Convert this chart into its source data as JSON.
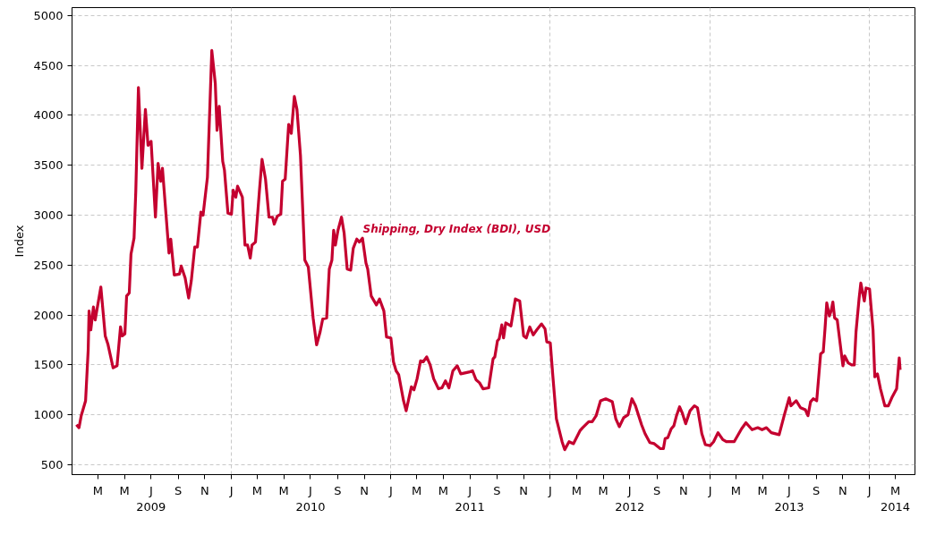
{
  "chart_data": {
    "type": "line",
    "ylabel": "Index",
    "xlim": [
      "2009-01-01",
      "2014-04-15"
    ],
    "ylim": [
      400,
      5080
    ],
    "yticks": [
      500,
      1000,
      1500,
      2000,
      2500,
      3000,
      3500,
      4000,
      4500,
      5000
    ],
    "xticks": [
      {
        "value": "2009-03-01",
        "label": "M"
      },
      {
        "value": "2009-05-01",
        "label": "M"
      },
      {
        "value": "2009-07-01",
        "label": "J\n2009"
      },
      {
        "value": "2009-09-01",
        "label": "S"
      },
      {
        "value": "2009-11-01",
        "label": "N"
      },
      {
        "value": "2010-01-01",
        "label": "J"
      },
      {
        "value": "2010-03-01",
        "label": "M"
      },
      {
        "value": "2010-05-01",
        "label": "M"
      },
      {
        "value": "2010-07-01",
        "label": "J\n2010"
      },
      {
        "value": "2010-09-01",
        "label": "S"
      },
      {
        "value": "2010-11-01",
        "label": "N"
      },
      {
        "value": "2011-01-01",
        "label": "J"
      },
      {
        "value": "2011-03-01",
        "label": "M"
      },
      {
        "value": "2011-05-01",
        "label": "M"
      },
      {
        "value": "2011-07-01",
        "label": "J\n2011"
      },
      {
        "value": "2011-09-01",
        "label": "S"
      },
      {
        "value": "2011-11-01",
        "label": "N"
      },
      {
        "value": "2012-01-01",
        "label": "J"
      },
      {
        "value": "2012-03-01",
        "label": "M"
      },
      {
        "value": "2012-05-01",
        "label": "M"
      },
      {
        "value": "2012-07-01",
        "label": "J\n2012"
      },
      {
        "value": "2012-09-01",
        "label": "S"
      },
      {
        "value": "2012-11-01",
        "label": "N"
      },
      {
        "value": "2013-01-01",
        "label": "J"
      },
      {
        "value": "2013-03-01",
        "label": "M"
      },
      {
        "value": "2013-05-01",
        "label": "M"
      },
      {
        "value": "2013-07-01",
        "label": "J\n2013"
      },
      {
        "value": "2013-09-01",
        "label": "S"
      },
      {
        "value": "2013-11-01",
        "label": "N"
      },
      {
        "value": "2014-01-01",
        "label": "J"
      },
      {
        "value": "2014-03-01",
        "label": "M\n2014"
      }
    ],
    "grid": true,
    "line_style": "solid",
    "marker": "none",
    "series": [
      {
        "name": "Shipping, Dry Index (BDI), USD",
        "color": "#c4002f",
        "x": [
          "2009-01-11",
          "2009-01-17",
          "2009-01-22",
          "2009-02-01",
          "2009-02-07",
          "2009-02-09",
          "2009-02-13",
          "2009-02-19",
          "2009-02-23",
          "2009-03-08",
          "2009-03-18",
          "2009-03-24",
          "2009-04-05",
          "2009-04-14",
          "2009-04-22",
          "2009-04-26",
          "2009-05-02",
          "2009-05-06",
          "2009-05-12",
          "2009-05-16",
          "2009-05-23",
          "2009-05-27",
          "2009-06-02",
          "2009-06-10",
          "2009-06-18",
          "2009-06-24",
          "2009-07-01",
          "2009-07-11",
          "2009-07-17",
          "2009-07-23",
          "2009-07-27",
          "2009-08-11",
          "2009-08-15",
          "2009-08-23",
          "2009-09-04",
          "2009-09-08",
          "2009-09-17",
          "2009-09-25",
          "2009-10-01",
          "2009-10-09",
          "2009-10-15",
          "2009-10-23",
          "2009-10-28",
          "2009-11-07",
          "2009-11-17",
          "2009-11-25",
          "2009-11-29",
          "2009-12-04",
          "2009-12-12",
          "2009-12-16",
          "2009-12-24",
          "2010-01-01",
          "2010-01-05",
          "2010-01-11",
          "2010-01-15",
          "2010-01-26",
          "2010-02-01",
          "2010-02-07",
          "2010-02-13",
          "2010-02-17",
          "2010-02-25",
          "2010-03-06",
          "2010-03-12",
          "2010-03-20",
          "2010-03-28",
          "2010-04-05",
          "2010-04-09",
          "2010-04-16",
          "2010-04-24",
          "2010-04-28",
          "2010-05-04",
          "2010-05-12",
          "2010-05-18",
          "2010-05-25",
          "2010-05-31",
          "2010-06-08",
          "2010-06-18",
          "2010-06-26",
          "2010-07-07",
          "2010-07-15",
          "2010-07-23",
          "2010-07-29",
          "2010-08-07",
          "2010-08-13",
          "2010-08-19",
          "2010-08-23",
          "2010-08-27",
          "2010-09-02",
          "2010-09-10",
          "2010-09-16",
          "2010-09-23",
          "2010-10-01",
          "2010-10-07",
          "2010-10-15",
          "2010-10-21",
          "2010-10-28",
          "2010-11-05",
          "2010-11-09",
          "2010-11-17",
          "2010-11-29",
          "2010-12-06",
          "2010-12-16",
          "2010-12-22",
          "2011-01-01",
          "2011-01-07",
          "2011-01-13",
          "2011-01-19",
          "2011-01-30",
          "2011-02-05",
          "2011-02-17",
          "2011-02-23",
          "2011-03-02",
          "2011-03-10",
          "2011-03-16",
          "2011-03-24",
          "2011-04-01",
          "2011-04-09",
          "2011-04-20",
          "2011-04-28",
          "2011-05-06",
          "2011-05-14",
          "2011-05-23",
          "2011-06-02",
          "2011-06-10",
          "2011-07-01",
          "2011-07-07",
          "2011-07-15",
          "2011-07-23",
          "2011-07-31",
          "2011-08-13",
          "2011-08-23",
          "2011-08-27",
          "2011-09-02",
          "2011-09-06",
          "2011-09-12",
          "2011-09-16",
          "2011-09-21",
          "2011-10-03",
          "2011-10-13",
          "2011-10-23",
          "2011-11-01",
          "2011-11-07",
          "2011-11-15",
          "2011-11-23",
          "2011-12-01",
          "2011-12-12",
          "2011-12-20",
          "2011-12-24",
          "2012-01-01",
          "2012-01-07",
          "2012-01-15",
          "2012-01-28",
          "2012-02-03",
          "2012-02-13",
          "2012-02-23",
          "2012-03-09",
          "2012-03-15",
          "2012-03-29",
          "2012-04-06",
          "2012-04-15",
          "2012-04-25",
          "2012-05-07",
          "2012-05-22",
          "2012-05-30",
          "2012-06-07",
          "2012-06-17",
          "2012-06-27",
          "2012-07-06",
          "2012-07-14",
          "2012-07-28",
          "2012-08-05",
          "2012-08-16",
          "2012-08-26",
          "2012-09-09",
          "2012-09-16",
          "2012-09-20",
          "2012-09-26",
          "2012-10-04",
          "2012-10-10",
          "2012-10-16",
          "2012-10-23",
          "2012-10-29",
          "2012-11-06",
          "2012-11-16",
          "2012-11-26",
          "2012-12-03",
          "2012-12-13",
          "2012-12-21",
          "2013-01-01",
          "2013-01-09",
          "2013-01-19",
          "2013-01-30",
          "2013-02-07",
          "2013-02-25",
          "2013-03-14",
          "2013-03-24",
          "2013-04-07",
          "2013-04-20",
          "2013-04-30",
          "2013-05-10",
          "2013-05-21",
          "2013-06-08",
          "2013-06-20",
          "2013-07-01",
          "2013-07-05",
          "2013-07-17",
          "2013-07-27",
          "2013-08-07",
          "2013-08-13",
          "2013-08-19",
          "2013-08-25",
          "2013-09-02",
          "2013-09-11",
          "2013-09-17",
          "2013-09-21",
          "2013-09-25",
          "2013-10-01",
          "2013-10-05",
          "2013-10-09",
          "2013-10-13",
          "2013-10-19",
          "2013-11-01",
          "2013-11-05",
          "2013-11-13",
          "2013-11-21",
          "2013-11-27",
          "2013-12-01",
          "2013-12-08",
          "2013-12-12",
          "2013-12-20",
          "2013-12-24",
          "2014-01-01",
          "2014-01-09",
          "2014-01-13",
          "2014-01-19",
          "2014-01-26",
          "2014-02-05",
          "2014-02-13",
          "2014-02-21",
          "2014-03-04",
          "2014-03-10",
          "2014-03-12"
        ],
        "values": [
          900,
          870,
          990,
          1140,
          1650,
          2040,
          1850,
          2080,
          1950,
          2280,
          1790,
          1710,
          1470,
          1490,
          1880,
          1790,
          1810,
          2190,
          2220,
          2610,
          2770,
          3240,
          4280,
          3470,
          4060,
          3700,
          3740,
          2980,
          3520,
          3340,
          3470,
          2620,
          2760,
          2400,
          2410,
          2490,
          2370,
          2170,
          2340,
          2680,
          2680,
          3030,
          3000,
          3380,
          4650,
          4320,
          3850,
          4090,
          3540,
          3450,
          3020,
          3010,
          3250,
          3180,
          3290,
          3180,
          2700,
          2700,
          2570,
          2700,
          2730,
          3240,
          3560,
          3360,
          2980,
          2980,
          2910,
          2990,
          3010,
          3340,
          3360,
          3910,
          3820,
          4190,
          4060,
          3600,
          2550,
          2480,
          1970,
          1700,
          1830,
          1960,
          1970,
          2460,
          2550,
          2850,
          2700,
          2850,
          2980,
          2820,
          2460,
          2450,
          2670,
          2760,
          2730,
          2770,
          2520,
          2460,
          2190,
          2100,
          2160,
          2040,
          1780,
          1770,
          1530,
          1440,
          1400,
          1140,
          1040,
          1280,
          1250,
          1360,
          1540,
          1530,
          1580,
          1500,
          1360,
          1260,
          1270,
          1340,
          1270,
          1440,
          1490,
          1410,
          1430,
          1440,
          1350,
          1320,
          1260,
          1270,
          1560,
          1580,
          1740,
          1760,
          1900,
          1770,
          1920,
          1890,
          2160,
          2140,
          1790,
          1770,
          1880,
          1800,
          1850,
          1910,
          1860,
          1730,
          1720,
          1380,
          960,
          730,
          650,
          730,
          710,
          840,
          870,
          930,
          930,
          990,
          1140,
          1160,
          1130,
          960,
          880,
          970,
          1000,
          1160,
          1090,
          900,
          810,
          720,
          710,
          660,
          660,
          760,
          770,
          860,
          890,
          990,
          1080,
          1020,
          910,
          1040,
          1090,
          1070,
          810,
          700,
          690,
          730,
          820,
          750,
          730,
          730,
          860,
          920,
          850,
          870,
          850,
          870,
          820,
          800,
          1000,
          1170,
          1090,
          1140,
          1070,
          1050,
          990,
          1130,
          1160,
          1140,
          1610,
          1630,
          1860,
          2120,
          1990,
          2040,
          2130,
          1970,
          1950,
          1490,
          1590,
          1520,
          1500,
          1500,
          1830,
          2160,
          2320,
          2140,
          2270,
          2260,
          1850,
          1380,
          1410,
          1260,
          1090,
          1090,
          1170,
          1260,
          1570,
          1450
        ]
      }
    ]
  }
}
